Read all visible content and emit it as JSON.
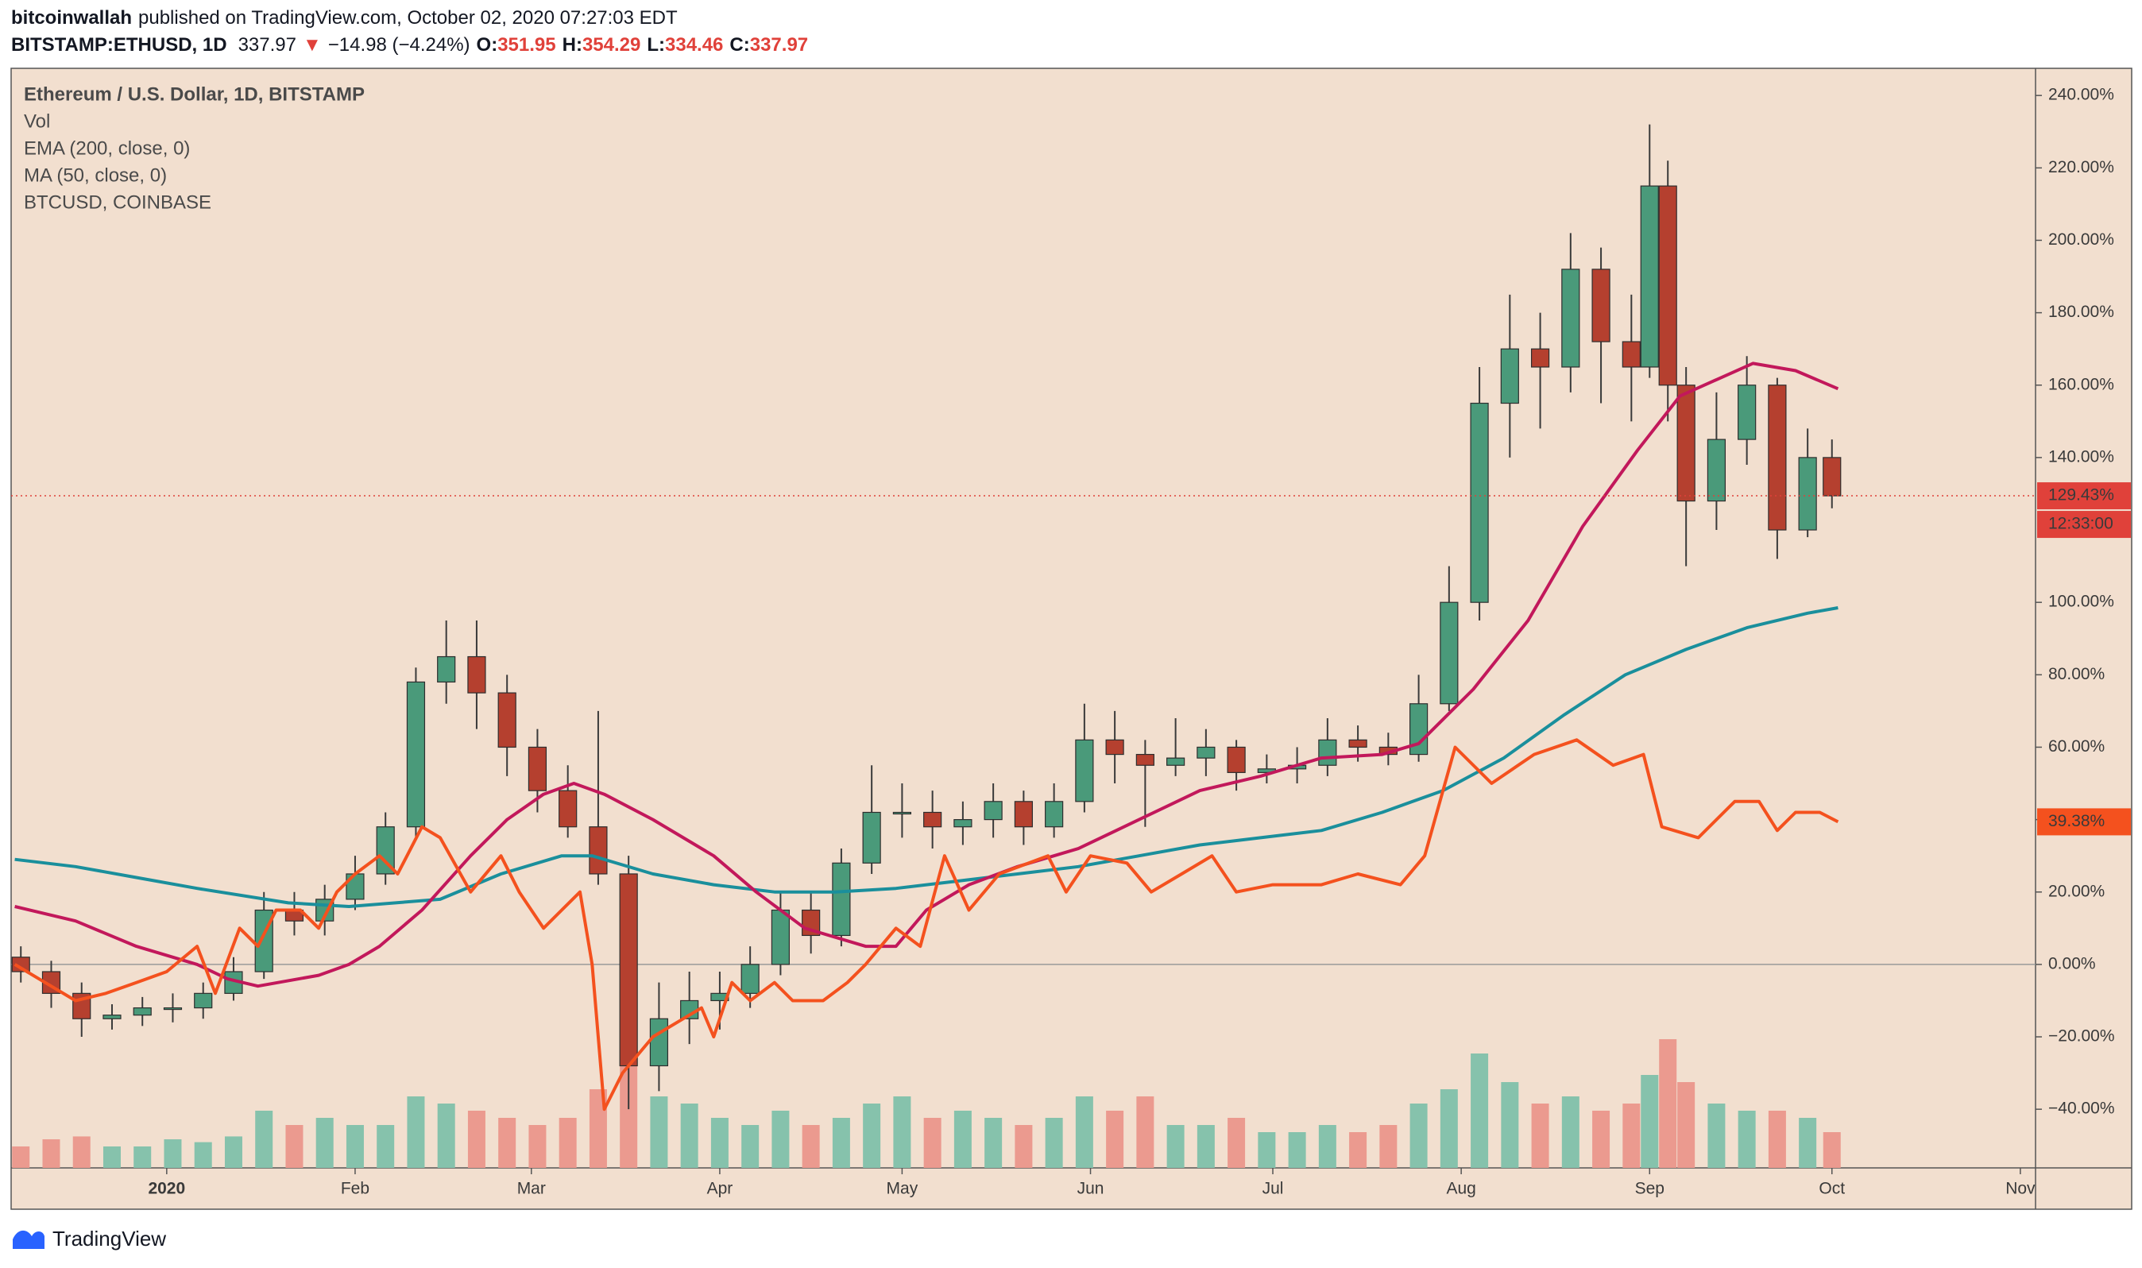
{
  "header": {
    "author": "bitcoinwallah",
    "published": "published on TradingView.com, October 02, 2020 07:27:03 EDT",
    "symbol": "BITSTAMP:ETHUSD, 1D",
    "price": "337.97",
    "arrow": "▼",
    "change": "−14.98 (−4.24%)",
    "o_label": "O:",
    "o_value": "351.95",
    "h_label": "H:",
    "h_value": "354.29",
    "l_label": "L:",
    "l_value": "334.46",
    "c_label": "C:",
    "c_value": "337.97"
  },
  "footer": {
    "brand": "TradingView"
  },
  "chart_data": {
    "type": "candlestick",
    "title": "Ethereum / U.S. Dollar, 1D, BITSTAMP",
    "volume_label": "Vol",
    "up_color": "#4a9a7a",
    "down_color": "#b5402f",
    "volume_up_color": "#86c2ac",
    "volume_down_color": "#eb9a8f",
    "grid": false,
    "log_scale": false,
    "xlim": [
      -25.6,
      307.5
    ],
    "xticks": [
      {
        "value": 0,
        "label": "2020"
      },
      {
        "value": 31,
        "label": "Feb"
      },
      {
        "value": 60,
        "label": "Mar"
      },
      {
        "value": 91,
        "label": "Apr"
      },
      {
        "value": 121,
        "label": "May"
      },
      {
        "value": 152,
        "label": "Jun"
      },
      {
        "value": 182,
        "label": "Jul"
      },
      {
        "value": 213,
        "label": "Aug"
      },
      {
        "value": 244,
        "label": "Sep"
      },
      {
        "value": 274,
        "label": "Oct"
      },
      {
        "value": 305,
        "label": "Nov"
      }
    ],
    "ylim": [
      -56.2,
      247.5
    ],
    "yticks": [
      {
        "value": 240,
        "label": "240.00%"
      },
      {
        "value": 220,
        "label": "220.00%"
      },
      {
        "value": 200,
        "label": "200.00%"
      },
      {
        "value": 180,
        "label": "180.00%"
      },
      {
        "value": 160,
        "label": "160.00%"
      },
      {
        "value": 140,
        "label": "140.00%"
      },
      {
        "value": 100,
        "label": "100.00%"
      },
      {
        "value": 80,
        "label": "80.00%"
      },
      {
        "value": 60,
        "label": "60.00%"
      },
      {
        "value": 40,
        "label": "40.00%"
      },
      {
        "value": 20,
        "label": "20.00%"
      },
      {
        "value": 0,
        "label": "0.00%"
      },
      {
        "value": -20,
        "label": "−20.00%"
      },
      {
        "value": -40,
        "label": "−40.00%"
      }
    ],
    "x": [
      -24,
      -19,
      -14,
      -9,
      -4,
      1,
      6,
      11,
      16,
      21,
      26,
      31,
      36,
      41,
      46,
      51,
      56,
      61,
      66,
      71,
      76,
      81,
      86,
      91,
      96,
      101,
      106,
      111,
      116,
      121,
      126,
      131,
      136,
      141,
      146,
      151,
      156,
      161,
      166,
      171,
      176,
      181,
      186,
      191,
      196,
      201,
      206,
      211,
      216,
      221,
      226,
      231,
      236,
      241,
      244,
      247,
      250,
      255,
      260,
      265,
      270,
      274
    ],
    "open": [
      2,
      -2,
      -8,
      -15,
      -14,
      -12,
      -12,
      -8,
      -2,
      15,
      12,
      18,
      25,
      38,
      78,
      85,
      75,
      60,
      48,
      38,
      25,
      -28,
      -15,
      -10,
      -8,
      0,
      15,
      8,
      28,
      42,
      42,
      38,
      40,
      45,
      38,
      45,
      62,
      58,
      55,
      57,
      60,
      53,
      54,
      55,
      62,
      60,
      58,
      72,
      100,
      155,
      170,
      165,
      192,
      172,
      165,
      215,
      160,
      128,
      145,
      160,
      120,
      140
    ],
    "high": [
      5,
      1,
      -5,
      -11,
      -9,
      -8,
      -5,
      2,
      20,
      20,
      22,
      30,
      42,
      82,
      95,
      95,
      80,
      65,
      55,
      70,
      30,
      -5,
      -2,
      -2,
      5,
      20,
      20,
      32,
      55,
      50,
      48,
      45,
      50,
      48,
      50,
      72,
      70,
      62,
      68,
      65,
      62,
      58,
      60,
      68,
      66,
      64,
      80,
      110,
      165,
      185,
      180,
      202,
      198,
      185,
      232,
      222,
      165,
      158,
      168,
      162,
      148,
      145
    ],
    "low": [
      -5,
      -12,
      -20,
      -18,
      -17,
      -16,
      -15,
      -10,
      -4,
      8,
      8,
      15,
      22,
      35,
      72,
      65,
      52,
      42,
      35,
      22,
      -40,
      -35,
      -22,
      -18,
      -12,
      -3,
      3,
      5,
      25,
      35,
      32,
      33,
      35,
      33,
      35,
      42,
      50,
      38,
      52,
      52,
      48,
      50,
      50,
      52,
      56,
      55,
      56,
      70,
      95,
      140,
      148,
      158,
      155,
      150,
      162,
      150,
      110,
      120,
      138,
      112,
      118,
      126
    ],
    "close": [
      -2,
      -8,
      -15,
      -14,
      -12,
      -12,
      -8,
      -2,
      15,
      12,
      18,
      25,
      38,
      78,
      85,
      75,
      60,
      48,
      38,
      25,
      -28,
      -15,
      -10,
      -8,
      0,
      15,
      8,
      28,
      42,
      42,
      38,
      40,
      45,
      38,
      45,
      62,
      58,
      55,
      57,
      60,
      53,
      54,
      55,
      62,
      60,
      58,
      72,
      100,
      155,
      170,
      165,
      192,
      172,
      165,
      215,
      160,
      128,
      145,
      160,
      120,
      140,
      129.43
    ],
    "volume": [
      15,
      20,
      22,
      15,
      15,
      20,
      18,
      22,
      40,
      30,
      35,
      30,
      30,
      50,
      45,
      40,
      35,
      30,
      35,
      55,
      95,
      50,
      45,
      35,
      30,
      40,
      30,
      35,
      45,
      50,
      35,
      40,
      35,
      30,
      35,
      50,
      40,
      50,
      30,
      30,
      35,
      25,
      25,
      30,
      25,
      30,
      45,
      55,
      80,
      60,
      45,
      50,
      40,
      45,
      65,
      90,
      60,
      45,
      40,
      40,
      35,
      25
    ],
    "price_line": {
      "value": 129.43,
      "label": "129.43%",
      "countdown": "12:33:00",
      "color": "#e0413a"
    },
    "series": [
      {
        "name": "EMA (200, close, 0)",
        "color": "#1a8f9c",
        "x": [
          -25,
          -15,
          -5,
          5,
          20,
          30,
          45,
          55,
          65,
          70,
          80,
          90,
          100,
          110,
          120,
          130,
          140,
          150,
          160,
          170,
          180,
          190,
          200,
          210,
          220,
          230,
          240,
          250,
          260,
          270,
          275
        ],
        "values": [
          29,
          27,
          24,
          21,
          17,
          16,
          18,
          25,
          30,
          30,
          25,
          22,
          20,
          20,
          21,
          23,
          25,
          27,
          30,
          33,
          35,
          37,
          42,
          48,
          57,
          69,
          80,
          87,
          93,
          97,
          98.5
        ]
      },
      {
        "name": "MA (50, close, 0)",
        "color": "#c2185b",
        "x": [
          -25,
          -15,
          -5,
          5,
          10,
          15,
          25,
          30,
          35,
          42,
          50,
          56,
          62,
          67,
          72,
          80,
          90,
          97,
          105,
          115,
          120,
          125,
          132,
          140,
          150,
          160,
          170,
          180,
          190,
          200,
          206,
          215,
          224,
          233,
          242,
          249,
          261,
          268,
          275
        ],
        "values": [
          16,
          12,
          5,
          0,
          -4,
          -6,
          -3,
          0,
          5,
          15,
          30,
          40,
          47,
          50,
          47,
          40,
          30,
          20,
          10,
          5,
          5,
          15,
          22,
          27,
          32,
          40,
          48,
          52,
          57,
          58,
          61,
          76,
          95,
          121,
          142,
          157,
          166,
          164,
          159
        ]
      },
      {
        "name": "BTCUSD, COINBASE",
        "color": "#f4511e",
        "last_label": "39.38%",
        "x": [
          -25,
          -20,
          -15,
          -10,
          -5,
          0,
          5,
          8,
          12,
          15,
          18,
          22,
          25,
          28,
          31,
          35,
          38,
          42,
          45,
          50,
          55,
          58,
          62,
          65,
          68,
          70,
          72,
          75,
          80,
          85,
          88,
          90,
          93,
          96,
          100,
          103,
          108,
          112,
          115,
          120,
          124,
          128,
          132,
          137,
          145,
          148,
          152,
          158,
          162,
          167,
          172,
          176,
          182,
          190,
          196,
          203,
          207,
          212,
          218,
          225,
          232,
          238,
          243,
          246,
          252,
          258,
          262,
          265,
          268,
          272,
          275
        ],
        "values": [
          0,
          -5,
          -10,
          -8,
          -5,
          -2,
          5,
          -8,
          10,
          5,
          15,
          15,
          10,
          20,
          25,
          30,
          25,
          38,
          35,
          20,
          30,
          20,
          10,
          15,
          20,
          0,
          -40,
          -30,
          -20,
          -15,
          -12,
          -20,
          -5,
          -10,
          -5,
          -10,
          -10,
          -5,
          0,
          10,
          5,
          30,
          15,
          25,
          30,
          20,
          30,
          28,
          20,
          25,
          30,
          20,
          22,
          22,
          25,
          22,
          30,
          60,
          50,
          58,
          62,
          55,
          58,
          38,
          35,
          45,
          45,
          37,
          42,
          42,
          39.38
        ]
      }
    ]
  }
}
